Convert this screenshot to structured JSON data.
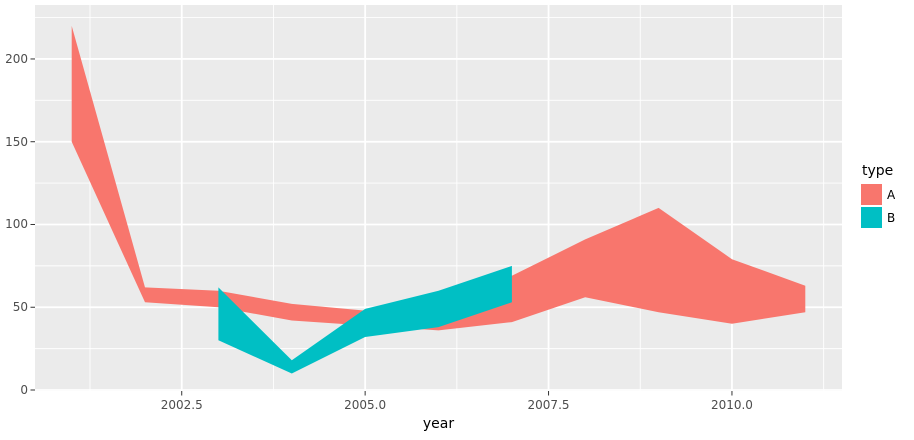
{
  "figure": {
    "background": "#FFFFFF",
    "panel_background": "#EBEBEB",
    "grid_color": "#FFFFFF",
    "tick_mark_color": "#333333",
    "tick_label_color": "#4D4D4D",
    "axis_title_color": "#000000"
  },
  "chart_data": {
    "type": "area",
    "subtype": "ribbon",
    "title": "",
    "xlabel": "year",
    "ylabel": "",
    "x_ticks": [
      2002.5,
      2005.0,
      2007.5,
      2010.0
    ],
    "x_tick_labels": [
      "2002.5",
      "2005.0",
      "2007.5",
      "2010.0"
    ],
    "y_ticks": [
      0,
      50,
      100,
      150,
      200
    ],
    "y_tick_labels": [
      "0",
      "50",
      "100",
      "150",
      "200"
    ],
    "xlim": [
      2000.5,
      2011.5
    ],
    "ylim": [
      -0.6,
      232.6
    ],
    "grid": {
      "major": true,
      "minor": true
    },
    "legend": {
      "title": "type",
      "position": "right",
      "entries": [
        {
          "label": "A",
          "color": "#F8766D"
        },
        {
          "label": "B",
          "color": "#00BFC4"
        }
      ]
    },
    "series": [
      {
        "name": "A",
        "color": "#F8766D",
        "points": [
          {
            "year": 2001,
            "ymin": 150,
            "ymax": 220
          },
          {
            "year": 2002,
            "ymin": 53,
            "ymax": 62
          },
          {
            "year": 2003,
            "ymin": 50,
            "ymax": 60
          },
          {
            "year": 2004,
            "ymin": 42,
            "ymax": 52
          },
          {
            "year": 2005,
            "ymin": 39,
            "ymax": 48
          },
          {
            "year": 2006,
            "ymin": 36,
            "ymax": 54
          },
          {
            "year": 2007,
            "ymin": 41,
            "ymax": 69
          },
          {
            "year": 2008,
            "ymin": 56,
            "ymax": 91
          },
          {
            "year": 2009,
            "ymin": 47,
            "ymax": 110
          },
          {
            "year": 2010,
            "ymin": 40,
            "ymax": 79
          },
          {
            "year": 2011,
            "ymin": 47,
            "ymax": 63
          }
        ]
      },
      {
        "name": "B",
        "color": "#00BFC4",
        "points": [
          {
            "year": 2003,
            "ymin": 30,
            "ymax": 62
          },
          {
            "year": 2004,
            "ymin": 10,
            "ymax": 18
          },
          {
            "year": 2005,
            "ymin": 32,
            "ymax": 49
          },
          {
            "year": 2006,
            "ymin": 38,
            "ymax": 60
          },
          {
            "year": 2007,
            "ymin": 53,
            "ymax": 75
          }
        ]
      }
    ]
  }
}
